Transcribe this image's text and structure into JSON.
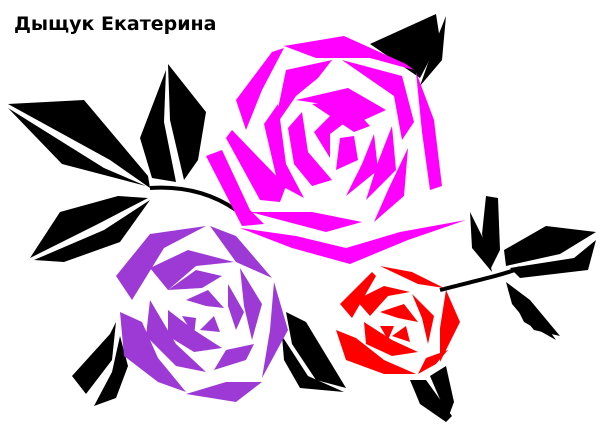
{
  "author_signature": "Дыщук Екатерина",
  "colors": {
    "background": "#ffffff",
    "leaf": "#000000",
    "rose_large": "#ff00ff",
    "rose_medium": "#9d3ad6",
    "rose_small": "#ff0000"
  }
}
